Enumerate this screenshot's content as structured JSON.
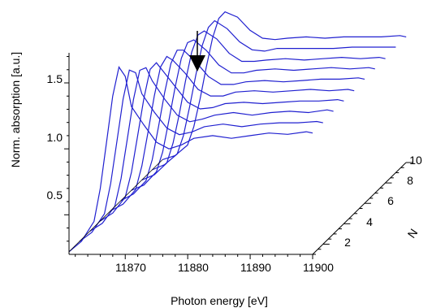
{
  "chart_data": {
    "type": "line",
    "projection": "3d-waterfall",
    "title": "",
    "xlabel": "Photon energy [eV]",
    "ylabel": "Norm. absorption [a.u.]",
    "zlabel": "N",
    "xlim": [
      11861,
      11900
    ],
    "ylim": [
      0.2,
      1.75
    ],
    "zlim": [
      1,
      10
    ],
    "x_ticks": [
      11870,
      11880,
      11890,
      11900
    ],
    "y_ticks": [
      0.5,
      1.0,
      1.5
    ],
    "z_ticks": [
      2,
      4,
      6,
      8,
      10
    ],
    "x_tick_labels": [
      "11870",
      "11880",
      "11890",
      "11900"
    ],
    "y_tick_labels": [
      "0.5",
      "1.0",
      "1.5"
    ],
    "z_tick_labels": [
      "2",
      "4",
      "6",
      "8",
      "10"
    ],
    "line_color": "#2020d0",
    "annotation": {
      "type": "arrow",
      "direction": "down",
      "meaning": "trend with increasing N"
    },
    "x": [
      11861,
      11863,
      11865,
      11866,
      11867,
      11868,
      11869,
      11870,
      11871,
      11873,
      11875,
      11877,
      11879,
      11881,
      11884,
      11887,
      11890,
      11893,
      11896,
      11899,
      11900
    ],
    "series": [
      {
        "values": [
          0.22,
          0.3,
          0.45,
          0.7,
          1.05,
          1.4,
          1.62,
          1.55,
          1.32,
          1.18,
          1.05,
          1.0,
          1.03,
          1.08,
          1.1,
          1.08,
          1.1,
          1.12,
          1.11,
          1.13,
          1.12
        ]
      },
      {
        "values": [
          0.22,
          0.29,
          0.43,
          0.66,
          0.98,
          1.3,
          1.52,
          1.5,
          1.34,
          1.2,
          1.08,
          1.03,
          1.05,
          1.09,
          1.11,
          1.09,
          1.11,
          1.12,
          1.12,
          1.13,
          1.12
        ]
      },
      {
        "values": [
          0.22,
          0.28,
          0.41,
          0.62,
          0.92,
          1.22,
          1.44,
          1.46,
          1.36,
          1.22,
          1.1,
          1.05,
          1.07,
          1.1,
          1.12,
          1.1,
          1.12,
          1.13,
          1.12,
          1.14,
          1.13
        ]
      },
      {
        "values": [
          0.22,
          0.28,
          0.4,
          0.59,
          0.87,
          1.15,
          1.37,
          1.42,
          1.36,
          1.24,
          1.12,
          1.07,
          1.08,
          1.11,
          1.12,
          1.11,
          1.12,
          1.13,
          1.13,
          1.14,
          1.13
        ]
      },
      {
        "values": [
          0.22,
          0.27,
          0.38,
          0.56,
          0.82,
          1.09,
          1.31,
          1.39,
          1.36,
          1.26,
          1.14,
          1.09,
          1.09,
          1.12,
          1.13,
          1.12,
          1.13,
          1.14,
          1.13,
          1.14,
          1.13
        ]
      },
      {
        "values": [
          0.22,
          0.27,
          0.37,
          0.53,
          0.78,
          1.04,
          1.26,
          1.36,
          1.36,
          1.27,
          1.16,
          1.1,
          1.1,
          1.12,
          1.13,
          1.12,
          1.13,
          1.14,
          1.14,
          1.15,
          1.14
        ]
      },
      {
        "values": [
          0.22,
          0.26,
          0.36,
          0.51,
          0.75,
          1.0,
          1.22,
          1.34,
          1.36,
          1.28,
          1.17,
          1.11,
          1.11,
          1.13,
          1.14,
          1.13,
          1.14,
          1.15,
          1.14,
          1.15,
          1.14
        ]
      },
      {
        "values": [
          0.22,
          0.26,
          0.35,
          0.5,
          0.72,
          0.97,
          1.19,
          1.32,
          1.35,
          1.29,
          1.18,
          1.12,
          1.12,
          1.13,
          1.14,
          1.13,
          1.14,
          1.15,
          1.14,
          1.15,
          1.14
        ]
      },
      {
        "values": [
          0.22,
          0.26,
          0.34,
          0.48,
          0.7,
          0.94,
          1.16,
          1.3,
          1.35,
          1.29,
          1.19,
          1.13,
          1.12,
          1.14,
          1.14,
          1.14,
          1.14,
          1.15,
          1.15,
          1.15,
          1.15
        ]
      },
      {
        "values": [
          0.22,
          0.25,
          0.33,
          0.47,
          0.68,
          0.92,
          1.14,
          1.29,
          1.34,
          1.3,
          1.2,
          1.14,
          1.13,
          1.14,
          1.15,
          1.14,
          1.15,
          1.15,
          1.15,
          1.16,
          1.15
        ]
      }
    ]
  }
}
